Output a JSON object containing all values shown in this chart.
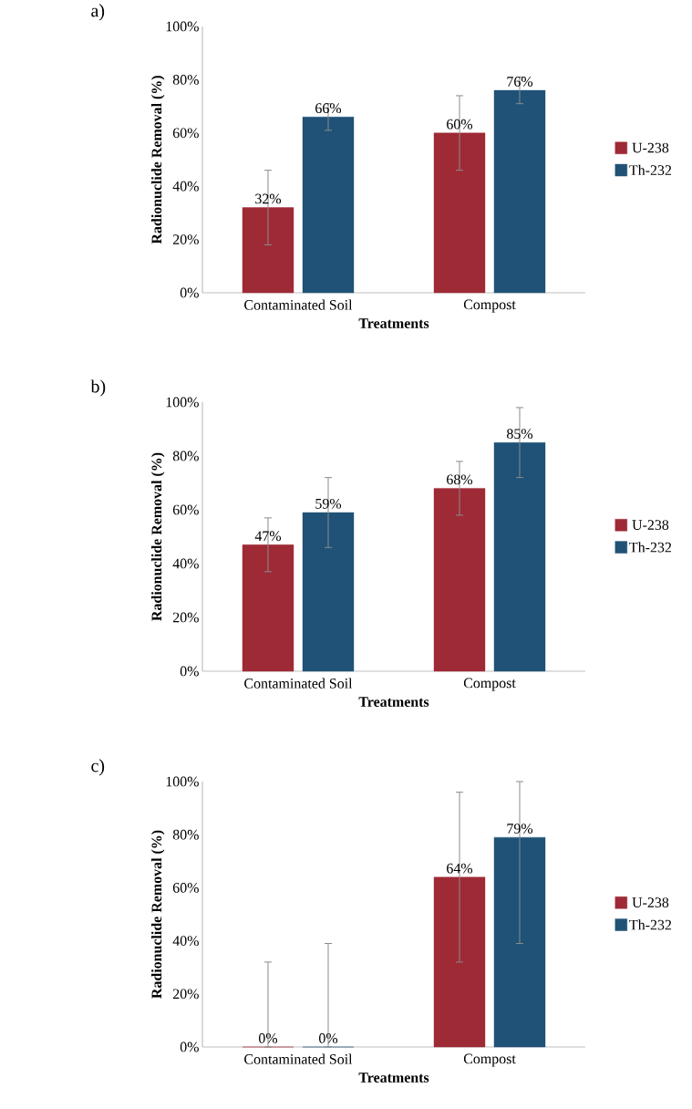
{
  "chart_data": [
    {
      "type": "bar",
      "title": "a)",
      "xlabel": "Treatments",
      "ylabel": "Radionuclide Removal (%)",
      "categories": [
        "Contaminated Soil",
        "Compost"
      ],
      "ylim": [
        0,
        100
      ],
      "yticks": [
        {
          "value": 0,
          "label": "0%"
        },
        {
          "value": 20,
          "label": "20%"
        },
        {
          "value": 40,
          "label": "40%"
        },
        {
          "value": 60,
          "label": "60%"
        },
        {
          "value": 80,
          "label": "80%"
        },
        {
          "value": 100,
          "label": "100%"
        }
      ],
      "legend": "right",
      "series": [
        {
          "name": "U-238",
          "color": "#9e2a36",
          "values": [
            32,
            60
          ],
          "errors": [
            [
              18,
              46
            ],
            [
              46,
              74
            ]
          ],
          "value_labels": [
            "32%",
            "60%"
          ]
        },
        {
          "name": "Th-232",
          "color": "#1f5276",
          "values": [
            66,
            76
          ],
          "errors": [
            [
              61,
              71
            ],
            [
              71,
              81
            ]
          ],
          "value_labels": [
            "66%",
            "76%"
          ]
        }
      ]
    },
    {
      "type": "bar",
      "title": "b)",
      "xlabel": "Treatments",
      "ylabel": "Radionuclide Removal (%)",
      "categories": [
        "Contaminated Soil",
        "Compost"
      ],
      "ylim": [
        0,
        100
      ],
      "yticks": [
        {
          "value": 0,
          "label": "0%"
        },
        {
          "value": 20,
          "label": "20%"
        },
        {
          "value": 40,
          "label": "40%"
        },
        {
          "value": 60,
          "label": "60%"
        },
        {
          "value": 80,
          "label": "80%"
        },
        {
          "value": 100,
          "label": "100%"
        }
      ],
      "legend": "right",
      "series": [
        {
          "name": "U-238",
          "color": "#9e2a36",
          "values": [
            47,
            68
          ],
          "errors": [
            [
              37,
              57
            ],
            [
              58,
              78
            ]
          ],
          "value_labels": [
            "47%",
            "68%"
          ]
        },
        {
          "name": "Th-232",
          "color": "#1f5276",
          "values": [
            59,
            85
          ],
          "errors": [
            [
              46,
              72
            ],
            [
              72,
              98
            ]
          ],
          "value_labels": [
            "59%",
            "85%"
          ]
        }
      ]
    },
    {
      "type": "bar",
      "title": "c)",
      "xlabel": "Treatments",
      "ylabel": "Radionuclide Removal (%)",
      "categories": [
        "Contaminated Soil",
        "Compost"
      ],
      "ylim": [
        0,
        100
      ],
      "yticks": [
        {
          "value": 0,
          "label": "0%"
        },
        {
          "value": 20,
          "label": "20%"
        },
        {
          "value": 40,
          "label": "40%"
        },
        {
          "value": 60,
          "label": "60%"
        },
        {
          "value": 80,
          "label": "80%"
        },
        {
          "value": 100,
          "label": "100%"
        }
      ],
      "legend": "right",
      "series": [
        {
          "name": "U-238",
          "color": "#9e2a36",
          "values": [
            0,
            64
          ],
          "errors": [
            [
              0,
              32
            ],
            [
              32,
              96
            ]
          ],
          "value_labels": [
            "0%",
            "64%"
          ]
        },
        {
          "name": "Th-232",
          "color": "#1f5276",
          "values": [
            0,
            79
          ],
          "errors": [
            [
              0,
              39
            ],
            [
              39,
              100
            ]
          ],
          "value_labels": [
            "0%",
            "79%"
          ]
        }
      ]
    }
  ]
}
